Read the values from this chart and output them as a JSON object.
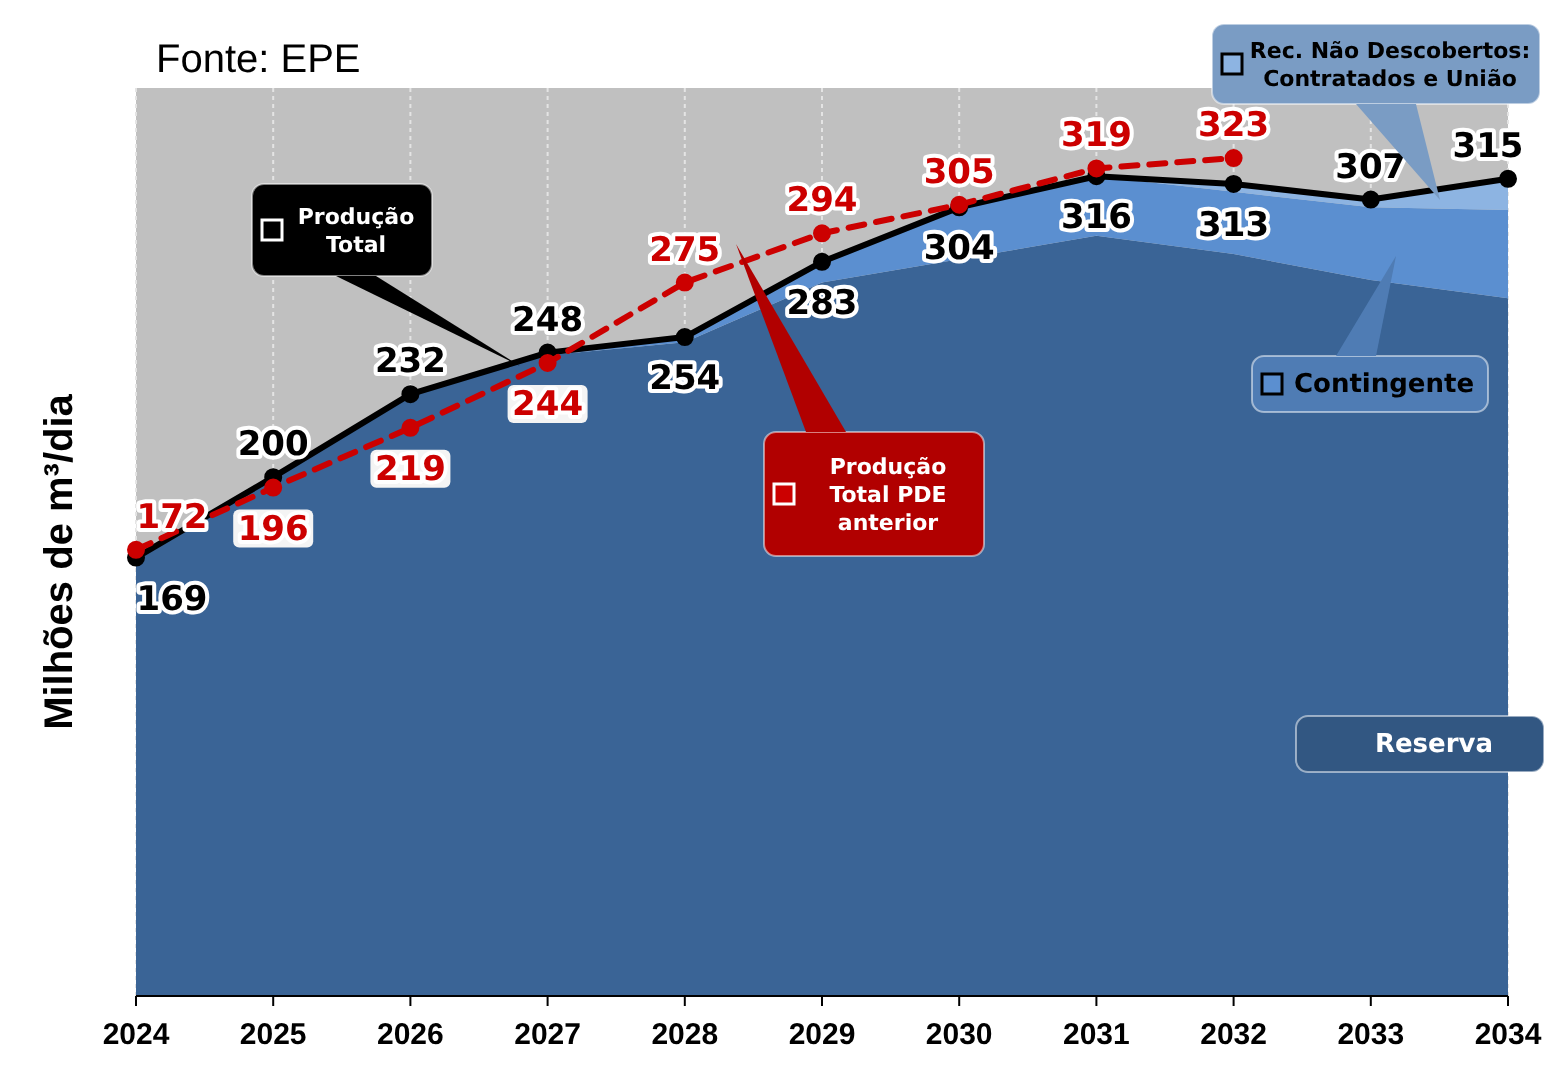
{
  "chart_data": {
    "type": "area",
    "stacked": true,
    "annotations": [
      "Fonte: EPE"
    ],
    "ylabel": "Milhões de m³/dia",
    "categories": [
      "2024",
      "2025",
      "2026",
      "2027",
      "2028",
      "2029",
      "2030",
      "2031",
      "2032",
      "2033",
      "2034"
    ],
    "ylim": [
      0,
      350
    ],
    "tick_labels": "x",
    "grid": "x",
    "legend": "right",
    "series": [
      {
        "name": "Reserva",
        "color": "#3a6496",
        "values": [
          169,
          200,
          232,
          247,
          252,
          275,
          284,
          293,
          286,
          276,
          269
        ]
      },
      {
        "name": "Contingente",
        "color": "#5b8fd0",
        "values": [
          null,
          null,
          0,
          1,
          2,
          8,
          20,
          23,
          24,
          28,
          34
        ]
      },
      {
        "name": "Rec. Não Descobertos: Contratados e União",
        "color": "#8db4e2",
        "values": [
          null,
          null,
          null,
          null,
          null,
          null,
          null,
          0,
          3,
          3,
          12
        ]
      },
      {
        "name": "Produção Total",
        "type": "line",
        "color": "#000000",
        "marker": "circle",
        "line_style": "solid",
        "values": [
          169,
          200,
          232,
          248,
          254,
          283,
          304,
          316,
          313,
          307,
          315
        ],
        "value_labels": [
          "169",
          "200",
          "232",
          "248",
          "254",
          "283",
          "304",
          "316",
          "313",
          "307",
          "315"
        ]
      },
      {
        "name": "Produção Total PDE anterior",
        "type": "line",
        "color": "#cc0000",
        "marker": "circle",
        "line_style": "dashed",
        "values": [
          172,
          196,
          219,
          244,
          275,
          294,
          305,
          319,
          323,
          null,
          null
        ],
        "value_labels": [
          "172",
          "196",
          "219",
          "244",
          "275",
          "294",
          "305",
          "319",
          "323",
          null,
          null
        ]
      }
    ]
  }
}
